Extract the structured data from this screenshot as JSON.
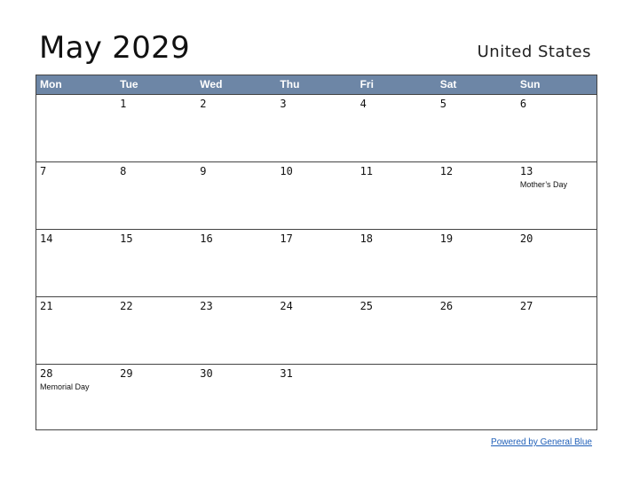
{
  "header": {
    "title": "May 2029",
    "country": "United States"
  },
  "calendar": {
    "weekdays": [
      "Mon",
      "Tue",
      "Wed",
      "Thu",
      "Fri",
      "Sat",
      "Sun"
    ],
    "weeks": [
      [
        {
          "day": "",
          "holiday": ""
        },
        {
          "day": "1",
          "holiday": ""
        },
        {
          "day": "2",
          "holiday": ""
        },
        {
          "day": "3",
          "holiday": ""
        },
        {
          "day": "4",
          "holiday": ""
        },
        {
          "day": "5",
          "holiday": ""
        },
        {
          "day": "6",
          "holiday": ""
        }
      ],
      [
        {
          "day": "7",
          "holiday": ""
        },
        {
          "day": "8",
          "holiday": ""
        },
        {
          "day": "9",
          "holiday": ""
        },
        {
          "day": "10",
          "holiday": ""
        },
        {
          "day": "11",
          "holiday": ""
        },
        {
          "day": "12",
          "holiday": ""
        },
        {
          "day": "13",
          "holiday": "Mother’s Day"
        }
      ],
      [
        {
          "day": "14",
          "holiday": ""
        },
        {
          "day": "15",
          "holiday": ""
        },
        {
          "day": "16",
          "holiday": ""
        },
        {
          "day": "17",
          "holiday": ""
        },
        {
          "day": "18",
          "holiday": ""
        },
        {
          "day": "19",
          "holiday": ""
        },
        {
          "day": "20",
          "holiday": ""
        }
      ],
      [
        {
          "day": "21",
          "holiday": ""
        },
        {
          "day": "22",
          "holiday": ""
        },
        {
          "day": "23",
          "holiday": ""
        },
        {
          "day": "24",
          "holiday": ""
        },
        {
          "day": "25",
          "holiday": ""
        },
        {
          "day": "26",
          "holiday": ""
        },
        {
          "day": "27",
          "holiday": ""
        }
      ],
      [
        {
          "day": "28",
          "holiday": "Memorial Day"
        },
        {
          "day": "29",
          "holiday": ""
        },
        {
          "day": "30",
          "holiday": ""
        },
        {
          "day": "31",
          "holiday": ""
        },
        {
          "day": "",
          "holiday": ""
        },
        {
          "day": "",
          "holiday": ""
        },
        {
          "day": "",
          "holiday": ""
        }
      ]
    ]
  },
  "footer": {
    "link_text": "Powered by General Blue"
  },
  "colors": {
    "header_bg": "#6d86a6",
    "header_text": "#ffffff",
    "grid_line": "#444444",
    "link": "#1f5fb8"
  }
}
